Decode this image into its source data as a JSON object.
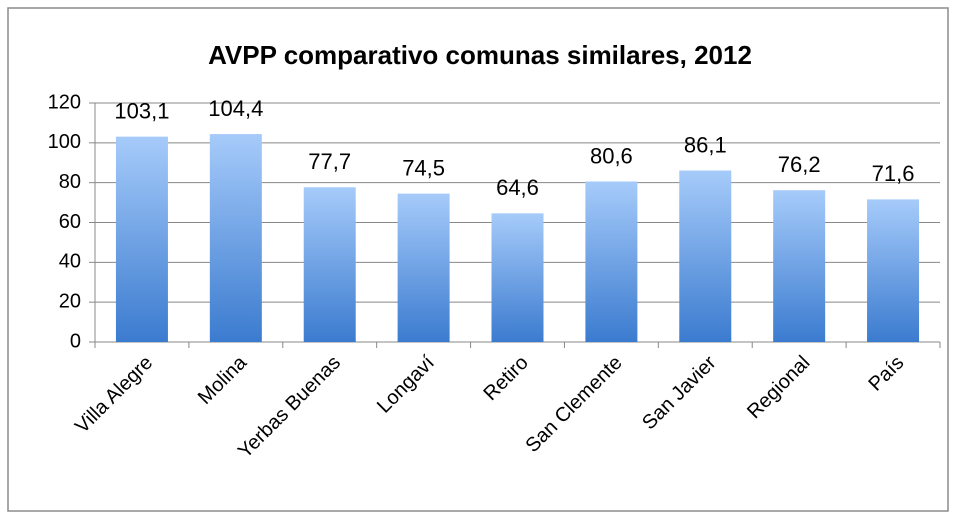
{
  "chart_data": {
    "type": "bar",
    "title": "AVPP comparativo comunas similares, 2012",
    "categories": [
      "Villa Alegre",
      "Molina",
      "Yerbas Buenas",
      "Longaví",
      "Retiro",
      "San Clemente",
      "San Javier",
      "Regional",
      "País"
    ],
    "values": [
      103.1,
      104.4,
      77.7,
      74.5,
      64.6,
      80.6,
      86.1,
      76.2,
      71.6
    ],
    "value_labels": [
      "103,1",
      "104,4",
      "77,7",
      "74,5",
      "64,6",
      "80,6",
      "86,1",
      "76,2",
      "71,6"
    ],
    "gradient": [
      "#a6cbfa",
      "#3b7bcf"
    ],
    "ylim": [
      0,
      120
    ],
    "yticks": [
      0,
      20,
      40,
      60,
      80,
      100,
      120
    ],
    "grid": true
  }
}
